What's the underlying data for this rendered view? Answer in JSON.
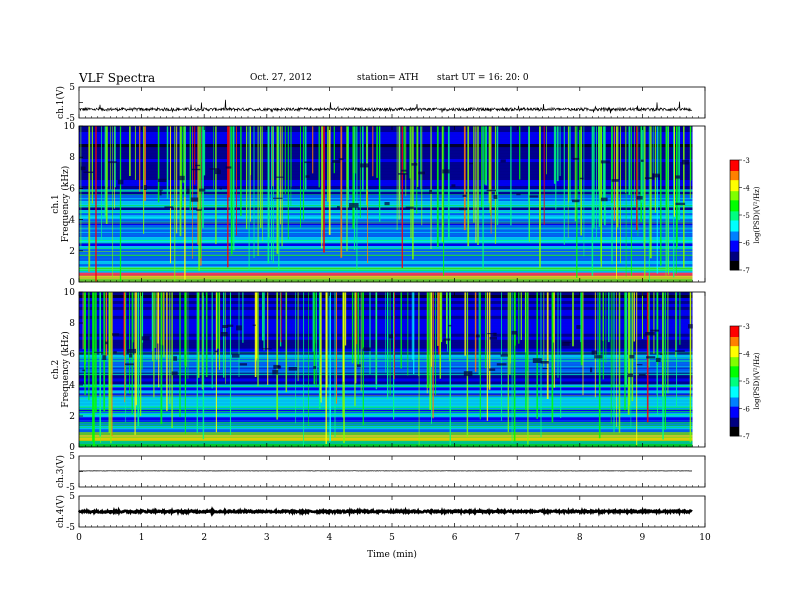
{
  "header": {
    "title": "VLF Spectra",
    "date": "Oct. 27, 2012",
    "station": "station= ATH",
    "start": "start UT = 16: 20: 0"
  },
  "colors": {
    "colormap": [
      "#000000",
      "#000080",
      "#0000ff",
      "#0080ff",
      "#00ffff",
      "#00ff80",
      "#00ff00",
      "#80ff00",
      "#ffff00",
      "#ff8000",
      "#ff0000",
      "#ffffff"
    ]
  },
  "chart_data": [
    {
      "type": "line",
      "panel": "ch1-waveform",
      "ylabel": "ch.1(V)",
      "ylim": [
        -5,
        5
      ],
      "yticks": [
        "5",
        "-5"
      ],
      "baseline_v": -2.2,
      "noise_v": 0.5,
      "x_range_min": [
        0,
        9.8
      ]
    },
    {
      "type": "heatmap",
      "panel": "ch1-spectrogram",
      "ylabel": "ch.1\nFrequency (kHz)",
      "ylim": [
        0,
        10
      ],
      "yticks": [
        "0",
        "2",
        "4",
        "6",
        "8",
        "10"
      ],
      "x_range_min": [
        0,
        9.8
      ],
      "colorbar": {
        "label": "log(PSD)(V²/Hz)",
        "range": [
          -7,
          -3
        ],
        "ticks": [
          "-3",
          "-4",
          "-5",
          "-6",
          "-7"
        ]
      }
    },
    {
      "type": "heatmap",
      "panel": "ch2-spectrogram",
      "ylabel": "ch.2\nFrequency (kHz)",
      "ylim": [
        0,
        10
      ],
      "yticks": [
        "0",
        "2",
        "4",
        "6",
        "8",
        "10"
      ],
      "x_range_min": [
        0,
        9.8
      ],
      "colorbar": {
        "label": "log(PSD)(V²/Hz)",
        "range": [
          -7,
          -3
        ],
        "ticks": [
          "-3",
          "-4",
          "-5",
          "-6",
          "-7"
        ]
      }
    },
    {
      "type": "line",
      "panel": "ch3-waveform",
      "ylabel": "ch.3(V)",
      "ylim": [
        -5,
        5
      ],
      "yticks": [
        "5",
        "-5"
      ],
      "baseline_v": 0.2,
      "noise_v": 0.05,
      "x_range_min": [
        0,
        9.8
      ]
    },
    {
      "type": "line",
      "panel": "ch4-waveform",
      "ylabel": "ch.4(V)",
      "ylim": [
        -5,
        5
      ],
      "yticks": [
        "5",
        "-5"
      ],
      "baseline_v": 0,
      "noise_v": 0.3,
      "x_range_min": [
        0,
        9.8
      ]
    }
  ],
  "xaxis": {
    "label": "Time (min)",
    "range": [
      0,
      10
    ],
    "ticks": [
      "0",
      "1",
      "2",
      "3",
      "4",
      "5",
      "6",
      "7",
      "8",
      "9",
      "10"
    ]
  }
}
